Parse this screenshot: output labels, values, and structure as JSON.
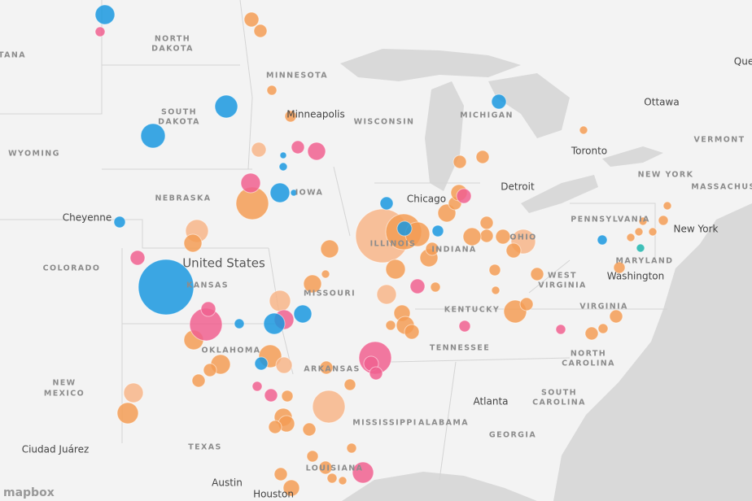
{
  "map": {
    "states": [
      "TANA",
      "NORTH",
      "DAKOTA",
      "SOUTH",
      "DAKOTA",
      "WYOMING",
      "NEBRASKA",
      "COLORADO",
      "KANSAS",
      "OKLAHOMA",
      "NEW",
      "MEXICO",
      "TEXAS",
      "MINNESOTA",
      "IOWA",
      "MISSOURI",
      "ARKANSAS",
      "LOUISIANA",
      "MISSISSIPPI",
      "ALABAMA",
      "TENNESSEE",
      "KENTUCKY",
      "ILLINOIS",
      "INDIANA",
      "OHIO",
      "WISCONSIN",
      "MICHIGAN",
      "WEST",
      "VIRGINIA",
      "VIRGINIA",
      "NORTH",
      "CAROLINA",
      "SOUTH",
      "CAROLINA",
      "GEORGIA",
      "PENNSYLVANIA",
      "NEW YORK",
      "MARYLAND",
      "VERMONT",
      "MASSACHUS"
    ],
    "cities": [
      "Minneapolis",
      "Chicago",
      "Detroit",
      "Toronto",
      "Ottawa",
      "New York",
      "Washington",
      "Atlanta",
      "Austin",
      "Houston",
      "Cheyenne",
      "Ciudad Juárez",
      "Que"
    ],
    "country": "United States",
    "attribution": "mapbox"
  }
}
